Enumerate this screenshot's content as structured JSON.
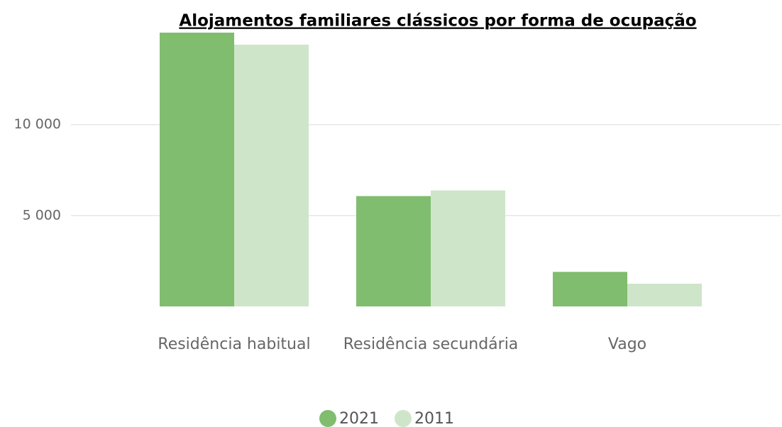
{
  "chart_data": {
    "type": "bar",
    "title": "Alojamentos familiares clássicos por forma de ocupação",
    "categories": [
      "Residência habitual",
      "Residência secundária",
      "Vago"
    ],
    "series": [
      {
        "name": "2021",
        "color": "#80bd6f",
        "values": [
          15060,
          6070,
          1900
        ]
      },
      {
        "name": "2011",
        "color": "#cfe5c9",
        "values": [
          14400,
          6380,
          1250
        ]
      }
    ],
    "ylim": [
      0,
      15100
    ],
    "yticks": [
      {
        "value": 5000,
        "label": "5 000"
      },
      {
        "value": 10000,
        "label": "10 000"
      }
    ],
    "grid": true,
    "legend": "bottom"
  }
}
